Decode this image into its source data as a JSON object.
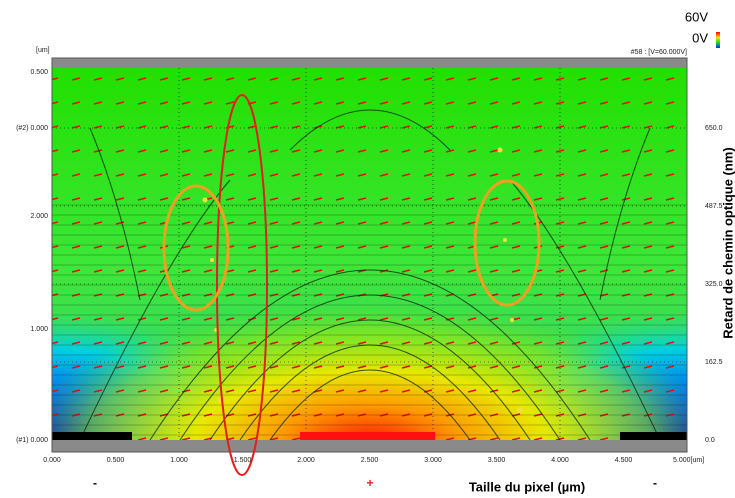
{
  "header": {
    "unit": "[um]",
    "status": "#58 : [V=60.000V]"
  },
  "legend": {
    "high": "60V",
    "low": "0V"
  },
  "left_axis": [
    "0.500",
    "(#2) 0.000",
    "2.000",
    "1.000",
    "(#1) 0.000"
  ],
  "bottom_axis": [
    "0.000",
    "0.500",
    "1.000",
    "1.500",
    "2.000",
    "2.500",
    "3.000",
    "3.500",
    "4.000",
    "4.500",
    "5.000[um]"
  ],
  "right_axis": [
    "650.0",
    "487.5",
    "325.0",
    "162.5",
    "0.0"
  ],
  "right_title": "Retard de chemin optique (nm)",
  "bottom_title": "Taille du pixel (µm)",
  "electrode_signs": [
    "-",
    "+",
    "-"
  ]
}
